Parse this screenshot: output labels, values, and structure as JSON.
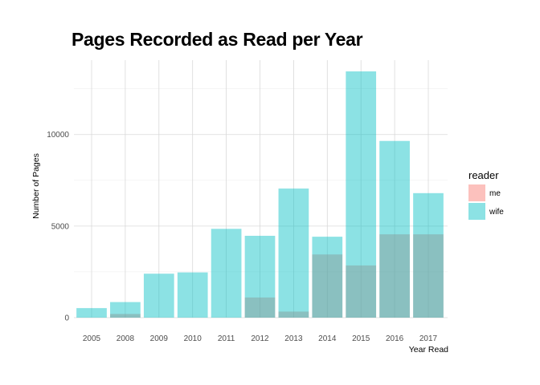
{
  "chart_data": {
    "type": "bar",
    "title": "Pages Recorded as Read per Year",
    "xlabel": "Year Read",
    "ylabel": "Number of Pages",
    "categories": [
      "2005",
      "2008",
      "2009",
      "2010",
      "2011",
      "2012",
      "2013",
      "2014",
      "2015",
      "2016",
      "2017"
    ],
    "series": [
      {
        "name": "me",
        "color": "#F8766D",
        "values": [
          0,
          200,
          0,
          0,
          0,
          1100,
          330,
          3450,
          2850,
          4550,
          4550
        ]
      },
      {
        "name": "wife",
        "color": "#00BFC4",
        "values": [
          520,
          850,
          2400,
          2470,
          4850,
          4470,
          7050,
          4420,
          13450,
          9650,
          6800
        ]
      }
    ],
    "bar_mode": "overlay",
    "bar_alpha": 0.45,
    "yticks": [
      0,
      5000,
      10000
    ],
    "ylim": [
      0,
      13450
    ],
    "grid": true,
    "legend": {
      "title": "reader",
      "placement": "right"
    }
  }
}
